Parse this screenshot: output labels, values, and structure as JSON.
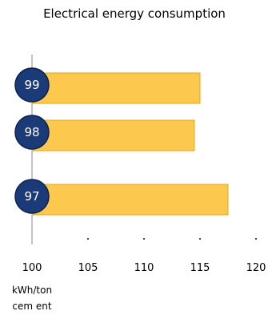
{
  "chart_data": {
    "type": "bar",
    "orientation": "horizontal",
    "title": "Electrical energy consumption",
    "categories": [
      "99",
      "98",
      "97"
    ],
    "values": [
      115,
      114.5,
      117.5
    ],
    "xlim": [
      100,
      120
    ],
    "xticks": [
      "100",
      "105",
      "110",
      "115",
      "120"
    ],
    "xlabel": [
      "kWh/ton",
      "cem ent"
    ],
    "ylabel": "",
    "grid": false,
    "legend": "none",
    "colors": {
      "bar": "#fcc94e",
      "bar_stroke": "#e0a820",
      "badge": "#1b3a78",
      "badge_stroke": "#0d2050",
      "axis": "#888888"
    }
  }
}
